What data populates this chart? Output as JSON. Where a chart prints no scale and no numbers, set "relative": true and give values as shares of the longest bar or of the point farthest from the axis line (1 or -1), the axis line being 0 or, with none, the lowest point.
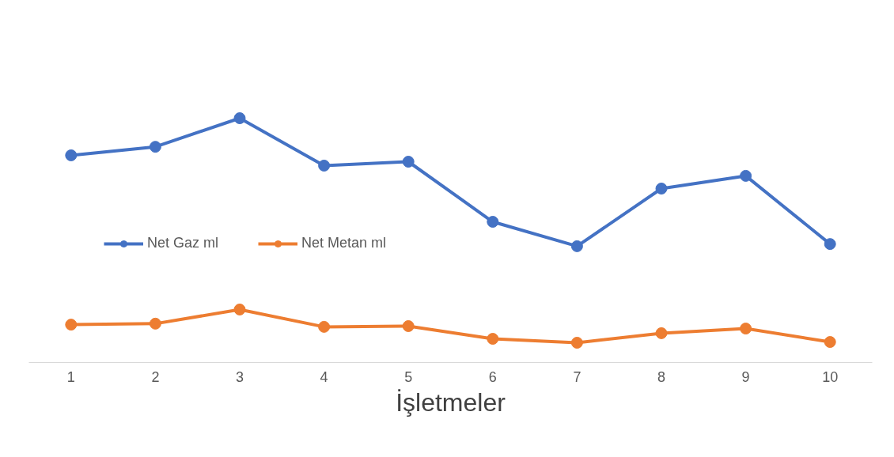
{
  "chart_data": {
    "type": "line",
    "relative": true,
    "xlabel": "İşletmeler",
    "categories": [
      "1",
      "2",
      "3",
      "4",
      "5",
      "6",
      "7",
      "8",
      "9",
      "10"
    ],
    "series": [
      {
        "name": "Net Gaz ml",
        "color": "#4472c4",
        "values": [
          0.848,
          0.883,
          1,
          0.806,
          0.822,
          0.576,
          0.476,
          0.712,
          0.764,
          0.485
        ]
      },
      {
        "name": "Net Metan ml",
        "color": "#ed7d31",
        "values": [
          0.155,
          0.159,
          0.217,
          0.146,
          0.149,
          0.097,
          0.081,
          0.12,
          0.139,
          0.084
        ]
      }
    ],
    "marker": "circle",
    "line_style": "solid",
    "grid": false,
    "legend": "left"
  }
}
